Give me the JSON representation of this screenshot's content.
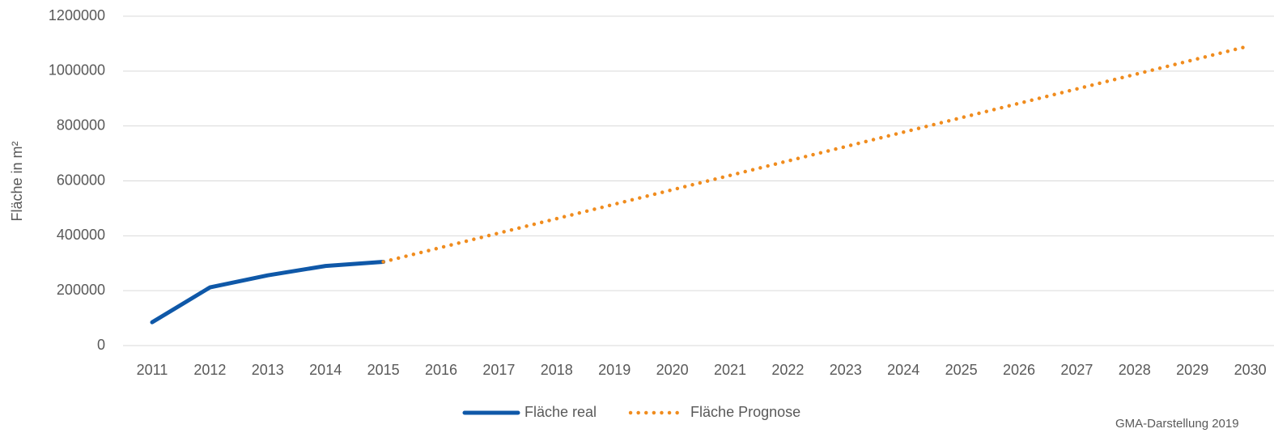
{
  "chart_data": {
    "type": "line",
    "y_label": "Fläche in m²",
    "source": "GMA-Darstellung 2019",
    "categories": [
      "2011",
      "2012",
      "2013",
      "2014",
      "2015",
      "2016",
      "2017",
      "2018",
      "2019",
      "2020",
      "2021",
      "2022",
      "2023",
      "2024",
      "2025",
      "2026",
      "2027",
      "2028",
      "2029",
      "2030"
    ],
    "series": [
      {
        "name": "Fläche real",
        "color": "#0f58a8",
        "style": "solid",
        "values": [
          85000,
          212000,
          256000,
          290000,
          305000,
          null,
          null,
          null,
          null,
          null,
          null,
          null,
          null,
          null,
          null,
          null,
          null,
          null,
          null,
          null
        ]
      },
      {
        "name": "Fläche Prognose",
        "color": "#f08c1e",
        "style": "dotted",
        "values": [
          null,
          null,
          null,
          null,
          305000,
          357500,
          410000,
          462500,
          515000,
          567500,
          620000,
          672500,
          725000,
          777500,
          830000,
          882500,
          935000,
          987500,
          1040000,
          1092500
        ]
      }
    ],
    "ylim": [
      0,
      1200000
    ],
    "yticks": [
      0,
      200000,
      400000,
      600000,
      800000,
      1000000,
      1200000
    ],
    "grid": true,
    "legend": "bottom"
  }
}
